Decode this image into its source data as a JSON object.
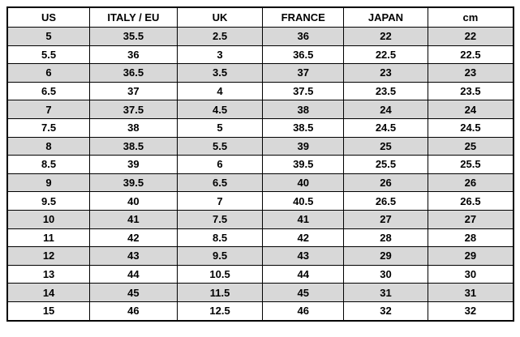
{
  "table": {
    "header": [
      "US",
      "ITALY / EU",
      "UK",
      "FRANCE",
      "JAPAN",
      "cm"
    ],
    "rows": [
      [
        5,
        35.5,
        2.5,
        36,
        22,
        22
      ],
      [
        5.5,
        36,
        3,
        36.5,
        22.5,
        22.5
      ],
      [
        6,
        36.5,
        3.5,
        37,
        23,
        23
      ],
      [
        6.5,
        37,
        4,
        37.5,
        23.5,
        23.5
      ],
      [
        7,
        37.5,
        4.5,
        38,
        24,
        24
      ],
      [
        7.5,
        38,
        5,
        38.5,
        24.5,
        24.5
      ],
      [
        8,
        38.5,
        5.5,
        39,
        25,
        25
      ],
      [
        8.5,
        39,
        6,
        39.5,
        25.5,
        25.5
      ],
      [
        9,
        39.5,
        6.5,
        40,
        26,
        26
      ],
      [
        9.5,
        40,
        7,
        40.5,
        26.5,
        26.5
      ],
      [
        10,
        41,
        7.5,
        41,
        27,
        27
      ],
      [
        11,
        42,
        8.5,
        42,
        28,
        28
      ],
      [
        12,
        43,
        9.5,
        43,
        29,
        29
      ],
      [
        13,
        44,
        10.5,
        44,
        30,
        30
      ],
      [
        14,
        45,
        11.5,
        45,
        31,
        31
      ],
      [
        15,
        46,
        12.5,
        46,
        32,
        32
      ]
    ]
  }
}
